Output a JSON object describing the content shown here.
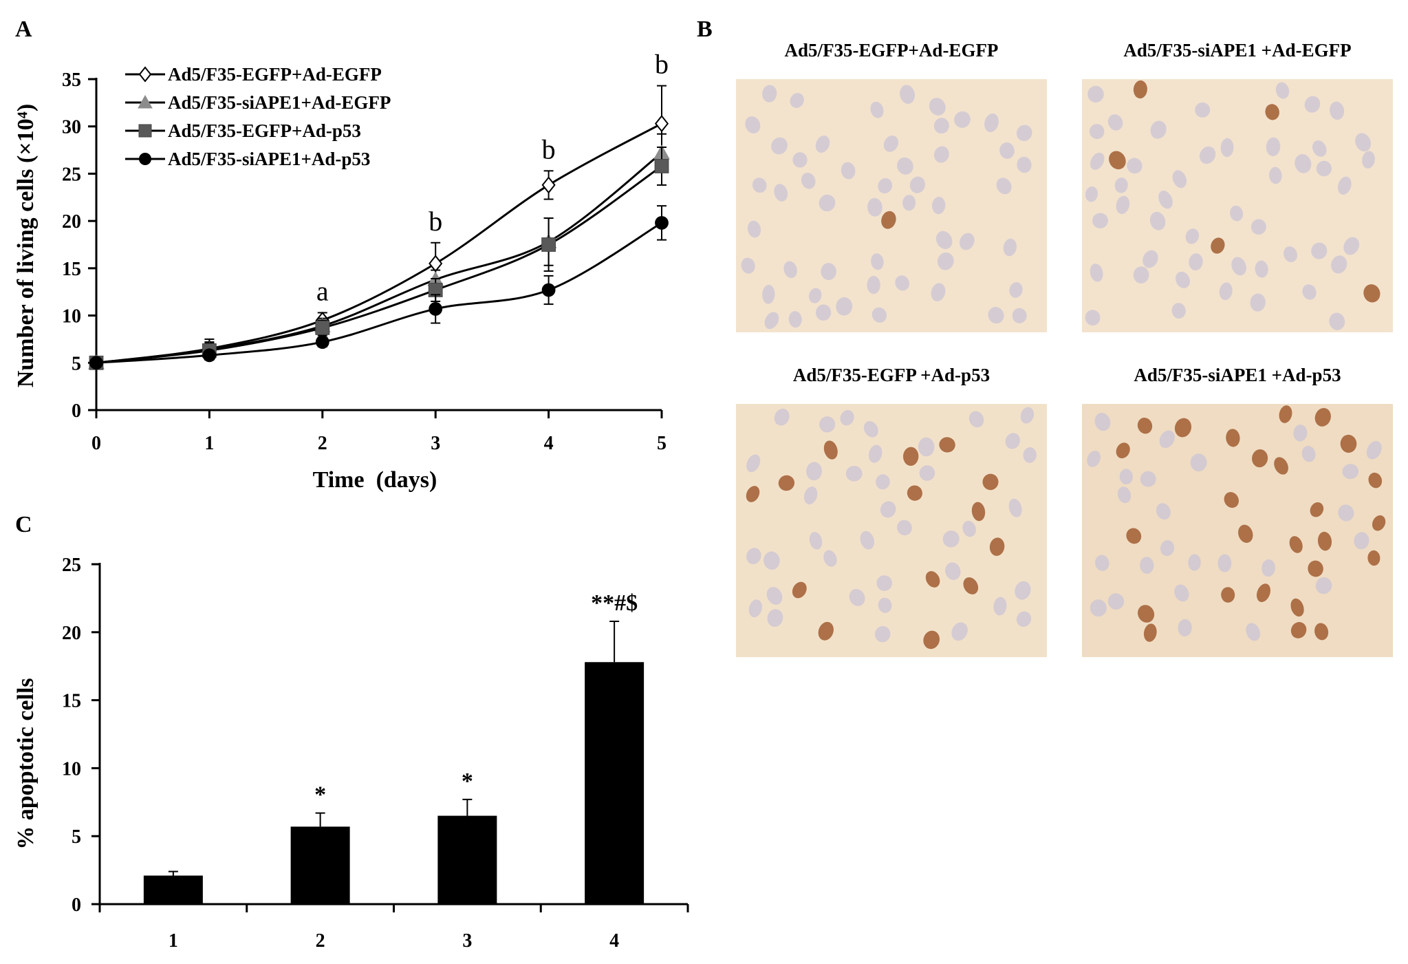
{
  "panels": {
    "A": {
      "letter": "A",
      "chart_data": {
        "type": "line",
        "title": "",
        "xlabel": "Time  (days)",
        "ylabel": "Number of living cells (×10⁴)",
        "x": [
          0,
          1,
          2,
          3,
          4,
          5
        ],
        "xlim": [
          0,
          5
        ],
        "ylim": [
          0,
          35
        ],
        "xticks": [
          "0",
          "1",
          "2",
          "3",
          "4",
          "5"
        ],
        "yticks": [
          "0",
          "5",
          "10",
          "15",
          "20",
          "25",
          "30",
          "35"
        ],
        "grid": false,
        "legend_position": "top-left",
        "series": [
          {
            "name": "Ad5/F35-EGFP+Ad-EGFP",
            "marker": "open-diamond",
            "color": "#000000",
            "values": [
              5.0,
              6.5,
              9.5,
              15.5,
              23.8,
              30.3
            ],
            "errors": [
              0.3,
              1.0,
              0.8,
              2.2,
              1.5,
              4.0
            ]
          },
          {
            "name": "Ad5/F35-siAPE1+Ad-EGFP",
            "marker": "triangle",
            "color": "#8c8c8c",
            "values": [
              5.0,
              6.4,
              8.9,
              13.8,
              17.8,
              27.2
            ],
            "errors": [
              0.3,
              0.8,
              0.8,
              1.0,
              2.5,
              2.0
            ]
          },
          {
            "name": "Ad5/F35-EGFP+Ad-p53",
            "marker": "square",
            "color": "#595959",
            "values": [
              5.0,
              6.3,
              8.7,
              12.7,
              17.5,
              25.8
            ],
            "errors": [
              0.3,
              0.8,
              0.8,
              1.2,
              2.8,
              2.0
            ]
          },
          {
            "name": "Ad5/F35-siAPE1+Ad-p53",
            "marker": "circle",
            "color": "#000000",
            "values": [
              5.0,
              5.8,
              7.2,
              10.7,
              12.7,
              19.8
            ],
            "errors": [
              0.3,
              0.5,
              0.5,
              1.5,
              1.5,
              1.8
            ]
          }
        ],
        "annotations": [
          {
            "x": 2,
            "label": "a"
          },
          {
            "x": 3,
            "label": "b"
          },
          {
            "x": 4,
            "label": "b"
          },
          {
            "x": 5,
            "label": "b"
          }
        ]
      }
    },
    "B": {
      "letter": "B",
      "images": [
        {
          "title": "Ad5/F35-EGFP+Ad-EGFP",
          "stained_nuclei": "few"
        },
        {
          "title": "Ad5/F35-siAPE1 +Ad-EGFP",
          "stained_nuclei": "some"
        },
        {
          "title": "Ad5/F35-EGFP +Ad-p53",
          "stained_nuclei": "many"
        },
        {
          "title": "Ad5/F35-siAPE1 +Ad-p53",
          "stained_nuclei": "most"
        }
      ]
    },
    "C": {
      "letter": "C",
      "chart_data": {
        "type": "bar",
        "title": "",
        "xlabel": "",
        "ylabel": "% apoptotic cells",
        "categories": [
          "1",
          "2",
          "3",
          "4"
        ],
        "values": [
          2.1,
          5.7,
          6.5,
          17.8
        ],
        "errors": [
          0.3,
          1.0,
          1.2,
          3.0
        ],
        "labels": [
          "",
          "*",
          "*",
          "**#$"
        ],
        "ylim": [
          0,
          25
        ],
        "yticks": [
          "0",
          "5",
          "10",
          "15",
          "20",
          "25"
        ],
        "bar_color": "#000000",
        "grid": false
      }
    }
  }
}
